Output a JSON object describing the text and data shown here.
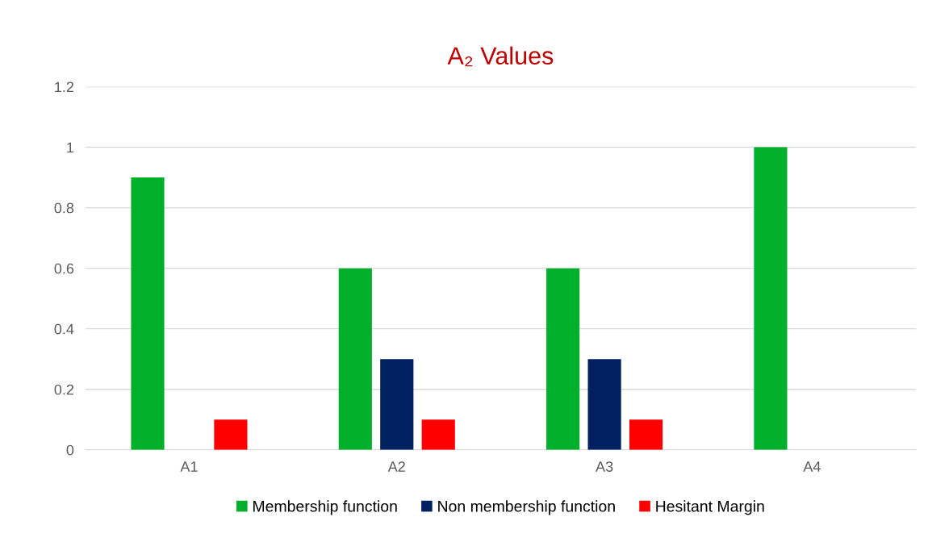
{
  "chart_data": {
    "type": "bar",
    "title": "A₂ Values",
    "categories": [
      "A1",
      "A2",
      "A3",
      "A4"
    ],
    "series": [
      {
        "name": "Membership function",
        "color": "#00b02a",
        "values": [
          0.9,
          0.6,
          0.6,
          1
        ]
      },
      {
        "name": "Non membership function",
        "color": "#002060",
        "values": [
          0,
          0.3,
          0.3,
          0
        ]
      },
      {
        "name": "Hesitant Margin",
        "color": "#ff0000",
        "values": [
          0.1,
          0.1,
          0.1,
          0
        ]
      }
    ],
    "ylim": [
      0,
      1.2
    ],
    "yticks": [
      0,
      0.2,
      0.4,
      0.6,
      0.8,
      1,
      1.2
    ],
    "grid": "y",
    "legend": "bottom"
  }
}
